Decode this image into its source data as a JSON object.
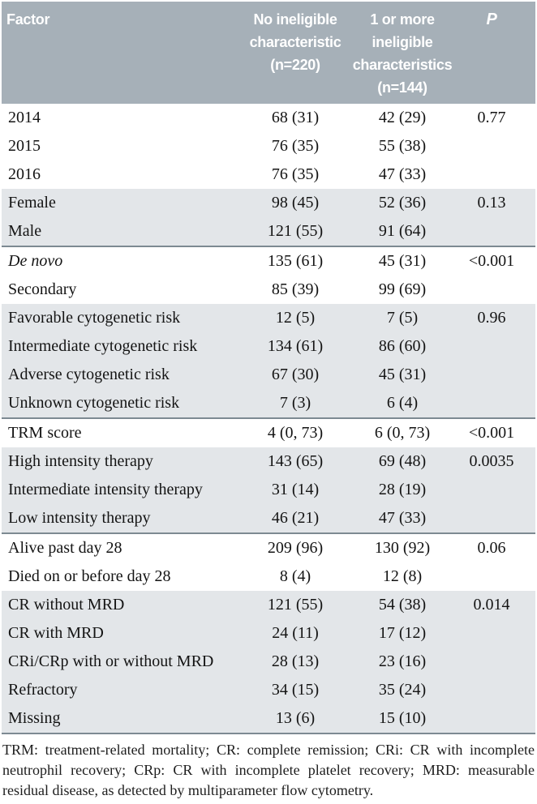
{
  "colors": {
    "header_bg": "#a6b0b8",
    "header_text": "#ffffff",
    "shaded_row_bg": "#e3e6e9",
    "separator_line": "#7d8a92",
    "body_text": "#141414"
  },
  "table": {
    "header": {
      "factor": "Factor",
      "col1": "No ineligible\ncharacteristic\n(n=220)",
      "col2": "1 or more\nineligible\ncharacteristics\n(n=144)",
      "p": "P"
    },
    "groups": [
      {
        "shaded": false,
        "rows": [
          {
            "factor": "2014",
            "v1": "68 (31)",
            "v2": "42 (29)",
            "p": "0.77"
          },
          {
            "factor": "2015",
            "v1": "76 (35)",
            "v2": "55 (38)",
            "p": ""
          },
          {
            "factor": "2016",
            "v1": "76 (35)",
            "v2": "47 (33)",
            "p": ""
          }
        ]
      },
      {
        "shaded": true,
        "rows": [
          {
            "factor": "Female",
            "v1": "98 (45)",
            "v2": "52 (36)",
            "p": "0.13"
          },
          {
            "factor": "Male",
            "v1": "121 (55)",
            "v2": "91 (64)",
            "p": ""
          }
        ]
      },
      {
        "shaded": false,
        "rows": [
          {
            "factor": "De novo",
            "italic": true,
            "v1": "135 (61)",
            "v2": "45 (31)",
            "p": "<0.001"
          },
          {
            "factor": "Secondary",
            "v1": "85 (39)",
            "v2": "99 (69)",
            "p": ""
          }
        ]
      },
      {
        "shaded": true,
        "rows": [
          {
            "factor": "Favorable cytogenetic risk",
            "v1": "12 (5)",
            "v2": "7 (5)",
            "p": "0.96"
          },
          {
            "factor": "Intermediate cytogenetic risk",
            "v1": "134 (61)",
            "v2": "86 (60)",
            "p": ""
          },
          {
            "factor": "Adverse cytogenetic risk",
            "v1": "67 (30)",
            "v2": "45 (31)",
            "p": ""
          },
          {
            "factor": "Unknown cytogenetic risk",
            "v1": "7 (3)",
            "v2": "6 (4)",
            "p": ""
          }
        ]
      },
      {
        "shaded": false,
        "rows": [
          {
            "factor": "TRM score",
            "v1": "4 (0, 73)",
            "v2": "6 (0, 73)",
            "p": "<0.001"
          }
        ]
      },
      {
        "shaded": true,
        "rows": [
          {
            "factor": "High intensity therapy",
            "v1": "143 (65)",
            "v2": "69 (48)",
            "p": "0.0035"
          },
          {
            "factor": "Intermediate intensity therapy",
            "v1": "31 (14)",
            "v2": "28 (19)",
            "p": ""
          },
          {
            "factor": "Low intensity therapy",
            "v1": "46 (21)",
            "v2": "47 (33)",
            "p": ""
          }
        ]
      },
      {
        "shaded": false,
        "rows": [
          {
            "factor": "Alive past day 28",
            "v1": "209 (96)",
            "v2": "130 (92)",
            "p": "0.06"
          },
          {
            "factor": "Died on or before day 28",
            "v1": "8 (4)",
            "v2": "12 (8)",
            "p": ""
          }
        ]
      },
      {
        "shaded": true,
        "rows": [
          {
            "factor": "CR without MRD",
            "v1": "121 (55)",
            "v2": "54 (38)",
            "p": "0.014"
          },
          {
            "factor": "CR with MRD",
            "v1": "24 (11)",
            "v2": "17 (12)",
            "p": ""
          },
          {
            "factor": "CRi/CRp with or without MRD",
            "v1": "28 (13)",
            "v2": "23 (16)",
            "p": ""
          },
          {
            "factor": "Refractory",
            "v1": "34 (15)",
            "v2": "35 (24)",
            "p": ""
          },
          {
            "factor": "Missing",
            "v1": "13 (6)",
            "v2": "15 (10)",
            "p": ""
          }
        ]
      }
    ],
    "footnote": "TRM: treatment-related mortality; CR: complete remission; CRi: CR with incomplete neutrophil recovery; CRp: CR with incomplete platelet recovery; MRD: measurable residual disease, as detected by multiparameter flow cytometry."
  }
}
